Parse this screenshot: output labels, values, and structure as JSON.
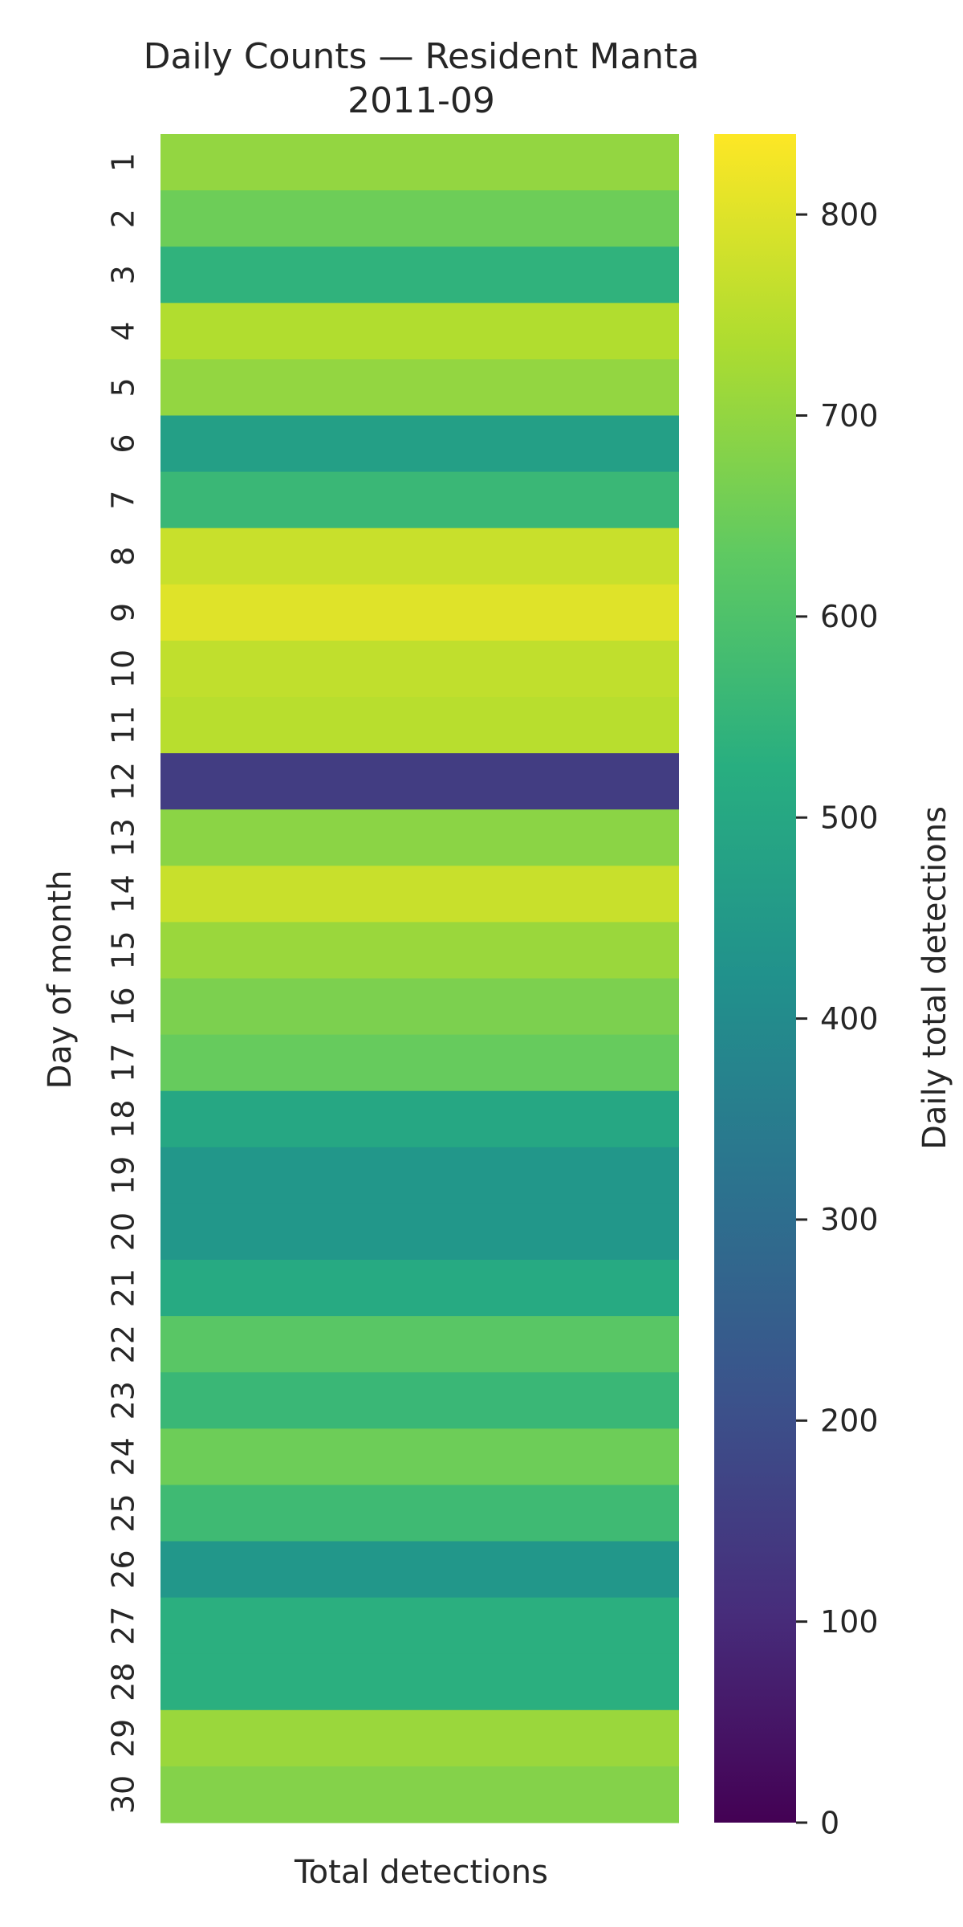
{
  "chart_data": {
    "type": "heatmap",
    "title": "Daily Counts — Resident Manta",
    "subtitle": "2011-09",
    "xlabel": "Total detections",
    "ylabel": "Day of month",
    "colorbar_label": "Daily total detections",
    "colormap": "viridis",
    "categories": [
      "1",
      "2",
      "3",
      "4",
      "5",
      "6",
      "7",
      "8",
      "9",
      "10",
      "11",
      "12",
      "13",
      "14",
      "15",
      "16",
      "17",
      "18",
      "19",
      "20",
      "21",
      "22",
      "23",
      "24",
      "25",
      "26",
      "27",
      "28",
      "29",
      "30"
    ],
    "values": [
      700,
      650,
      540,
      740,
      700,
      470,
      560,
      770,
      800,
      760,
      750,
      150,
      690,
      770,
      710,
      670,
      640,
      500,
      440,
      440,
      510,
      620,
      560,
      650,
      570,
      440,
      530,
      530,
      710,
      680
    ],
    "colorbar_range": [
      0,
      840
    ],
    "colorbar_ticks": [
      "0",
      "100",
      "200",
      "300",
      "400",
      "500",
      "600",
      "700",
      "800"
    ]
  }
}
